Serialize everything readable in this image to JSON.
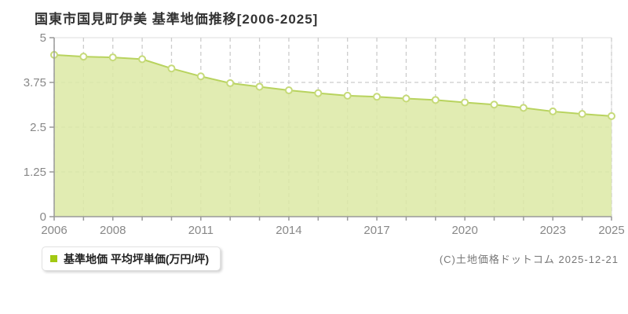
{
  "header": {
    "title": "国東市国見町伊美 基準地価推移[2006-2025]"
  },
  "legend": {
    "label": "基準地価 平均坪単価(万円/坪)",
    "marker_color": "#a2c913"
  },
  "footer": {
    "copyright": "(C)土地価格ドットコム 2025-12-21"
  },
  "chart_data": {
    "type": "area",
    "title": "国東市国見町伊美 基準地価推移[2006-2025]",
    "series_name": "基準地価 平均坪単価(万円/坪)",
    "x": [
      2006,
      2007,
      2008,
      2009,
      2010,
      2011,
      2012,
      2013,
      2014,
      2015,
      2016,
      2017,
      2018,
      2019,
      2020,
      2021,
      2022,
      2023,
      2024,
      2025
    ],
    "values": [
      4.52,
      4.47,
      4.45,
      4.4,
      4.14,
      3.92,
      3.73,
      3.63,
      3.53,
      3.45,
      3.38,
      3.35,
      3.3,
      3.26,
      3.19,
      3.13,
      3.04,
      2.94,
      2.87,
      2.81
    ],
    "ylabel": "万円/坪",
    "ylim": [
      0,
      5
    ],
    "yticks": [
      0,
      1.25,
      2.5,
      3.75,
      5
    ],
    "ytick_labels": [
      "0",
      "1.25",
      "2.5",
      "3.75",
      "5"
    ],
    "xticks_labeled": [
      2006,
      2008,
      2011,
      2014,
      2017,
      2020,
      2023,
      2025
    ],
    "grid": "dashed",
    "legend_position": "bottom-left",
    "style": {
      "area_fill": "#dce9a4",
      "area_opacity": 0.85,
      "line_color": "#b8d35e",
      "marker_fill": "#ffffff",
      "marker_stroke": "#c6da79",
      "grid_color": "#cccccc",
      "border_color": "#dddddd",
      "axis_color": "#999999",
      "tick_label_color": "#888888"
    }
  }
}
